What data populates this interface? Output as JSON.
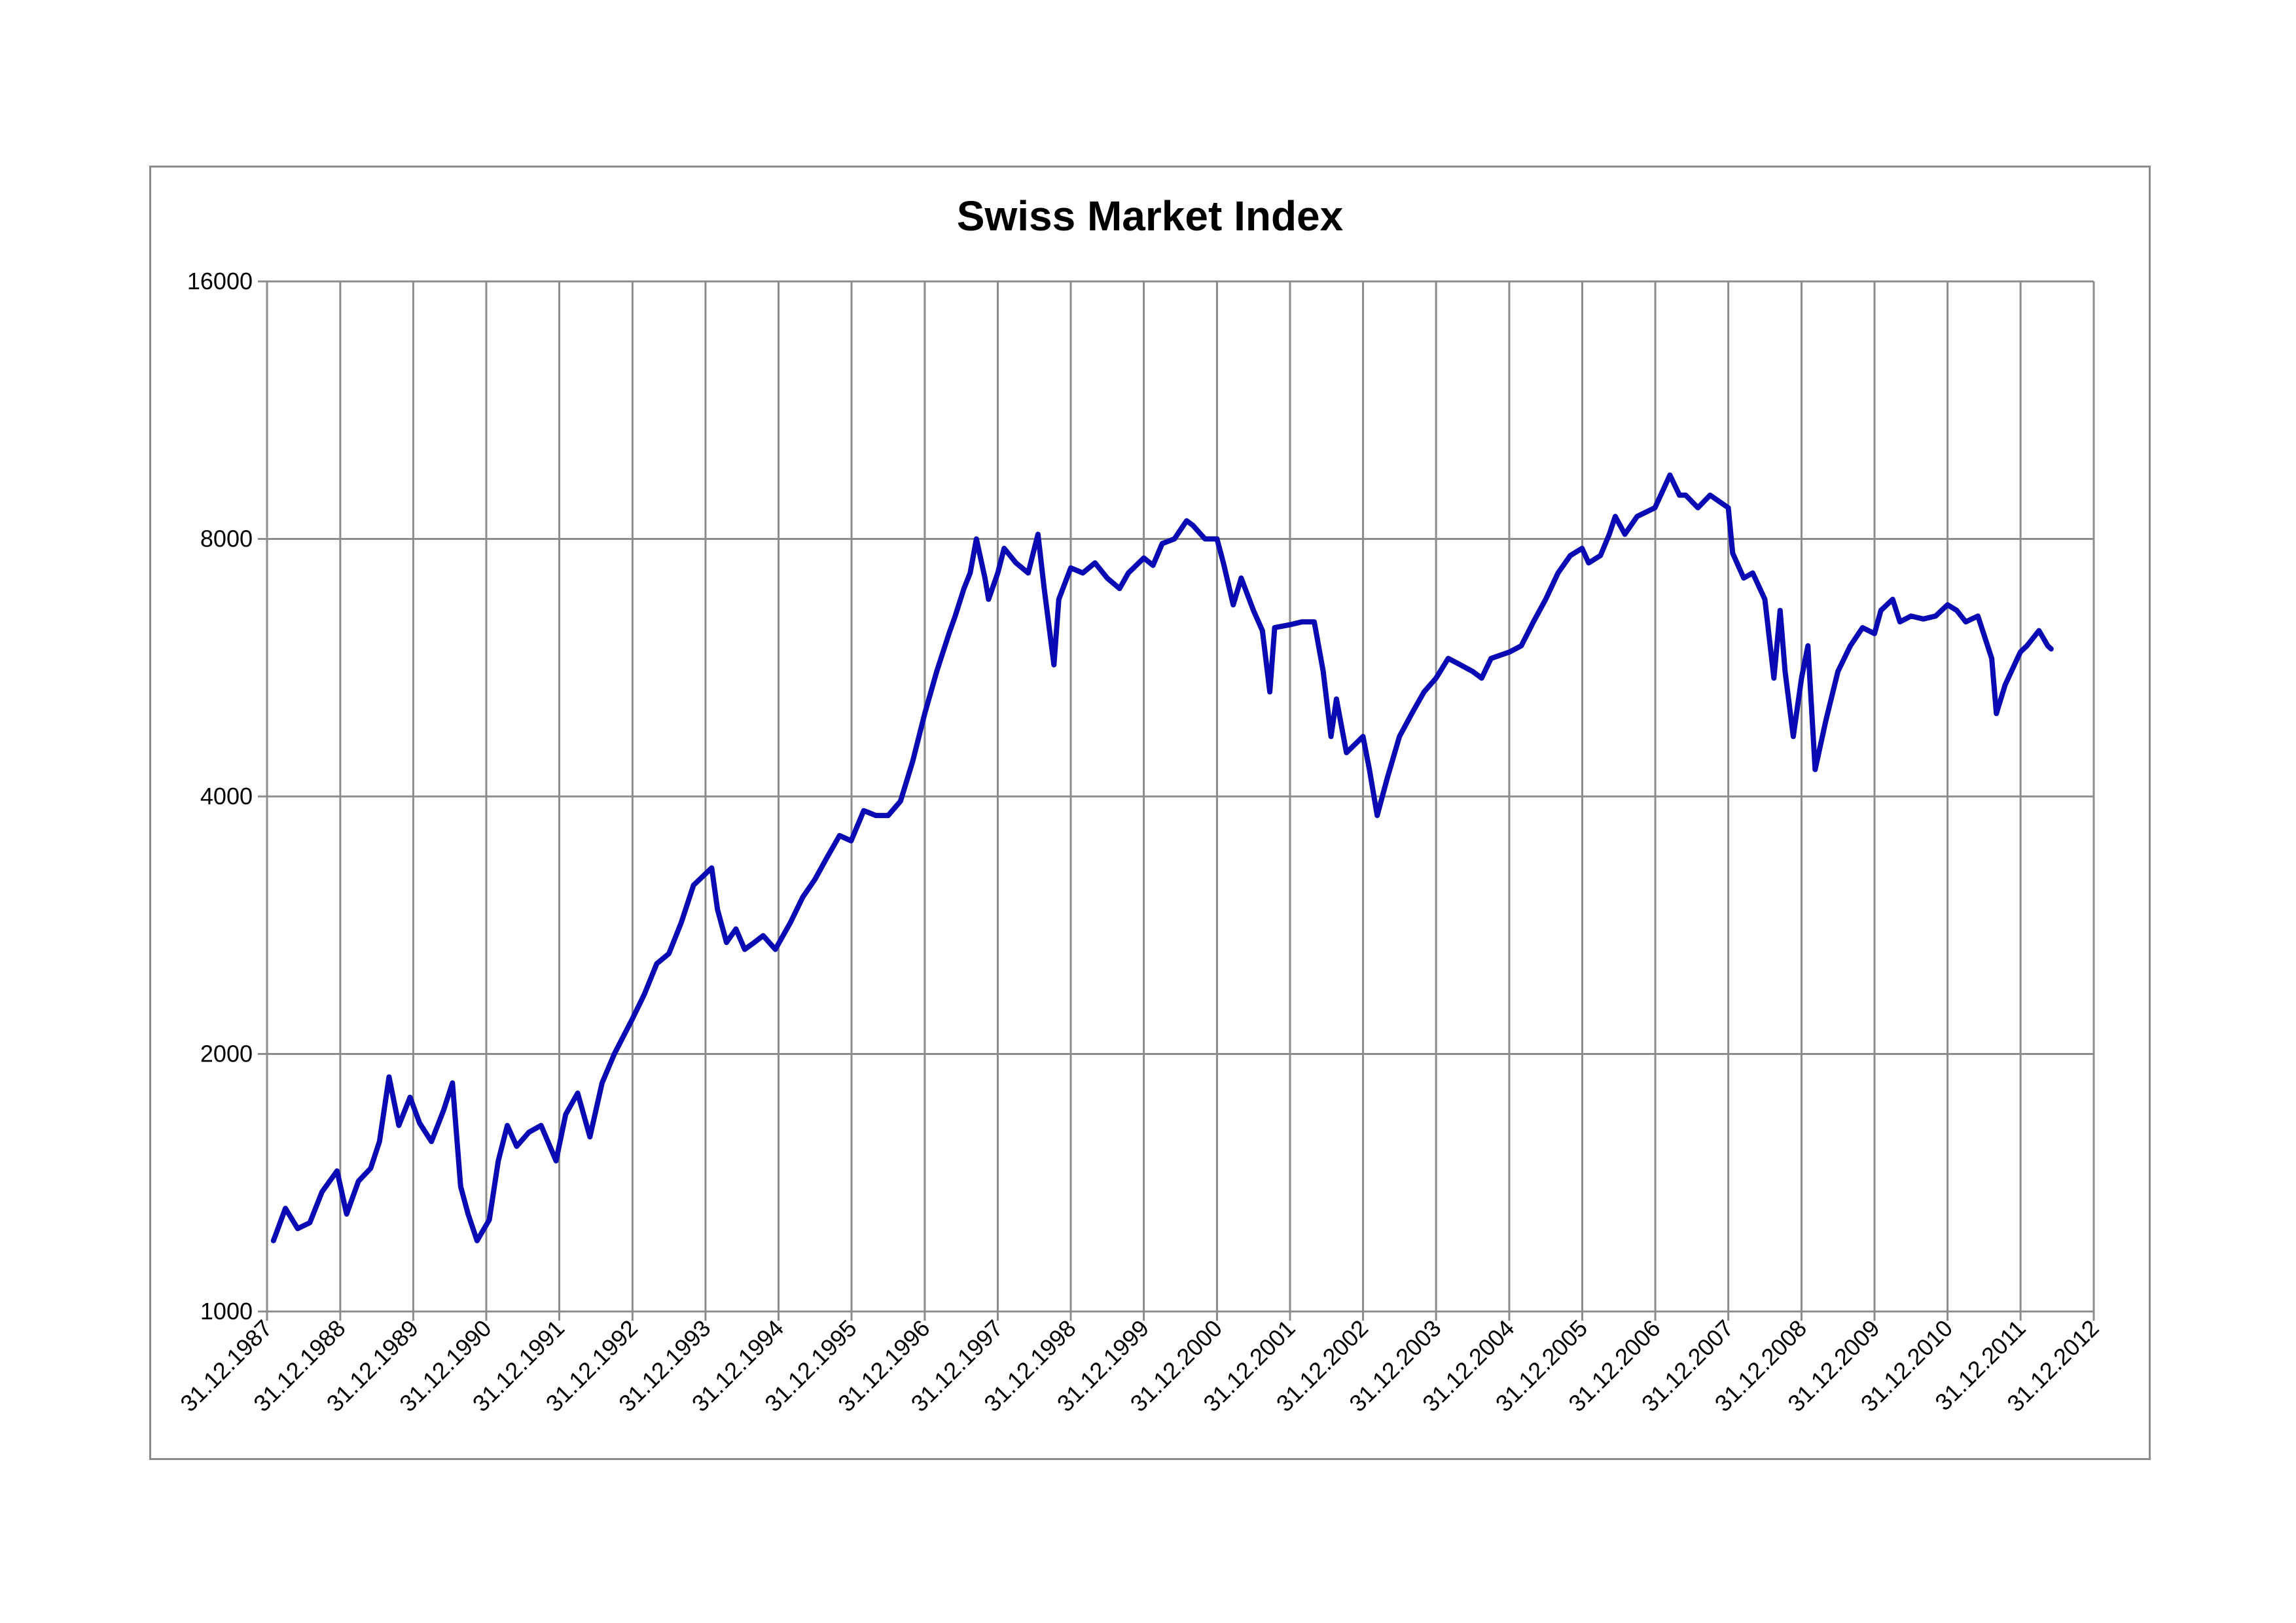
{
  "chart_data": {
    "type": "line",
    "title": "Swiss Market Index",
    "xlabel": "",
    "ylabel": "",
    "y_scale": "log2",
    "ylim": [
      1000,
      16000
    ],
    "y_ticks": [
      "1000",
      "2000",
      "4000",
      "8000",
      "16000"
    ],
    "x_ticks": [
      "31.12.1987",
      "31.12.1988",
      "31.12.1989",
      "31.12.1990",
      "31.12.1991",
      "31.12.1992",
      "31.12.1993",
      "31.12.1994",
      "31.12.1995",
      "31.12.1996",
      "31.12.1997",
      "31.12.1998",
      "31.12.1999",
      "31.12.2000",
      "31.12.2001",
      "31.12.2002",
      "31.12.2003",
      "31.12.2004",
      "31.12.2005",
      "31.12.2006",
      "31.12.2007",
      "31.12.2008",
      "31.12.2009",
      "31.12.2010",
      "31.12.2011",
      "31.12.2012"
    ],
    "xlim": [
      "1987-12-31",
      "2012-12-31"
    ],
    "grid": true,
    "line_color": "#0a0ab4",
    "series": [
      {
        "x": [
          "1988-02-01",
          "1988-04-01",
          "1988-06-01",
          "1988-08-01",
          "1988-10-01",
          "1988-12-15",
          "1989-02-01",
          "1989-04-01",
          "1989-06-01",
          "1989-07-15",
          "1989-09-01",
          "1989-10-20",
          "1989-12-15",
          "1990-02-01",
          "1990-04-01",
          "1990-06-01",
          "1990-07-15",
          "1990-08-25",
          "1990-10-01",
          "1990-11-15",
          "1991-01-15",
          "1991-03-01",
          "1991-04-15",
          "1991-06-01",
          "1991-08-01",
          "1991-10-01",
          "1991-12-15",
          "1992-02-01",
          "1992-04-01",
          "1992-06-01",
          "1992-08-01",
          "1992-10-01",
          "1992-12-31",
          "1993-03-01",
          "1993-05-01",
          "1993-07-01",
          "1993-09-01",
          "1993-11-01",
          "1994-01-31",
          "1994-03-01",
          "1994-04-15",
          "1994-06-01",
          "1994-07-15",
          "1994-09-01",
          "1994-10-15",
          "1994-12-15",
          "1995-03-01",
          "1995-05-01",
          "1995-07-01",
          "1995-09-01",
          "1995-11-01",
          "1995-12-29",
          "1996-03-01",
          "1996-05-01",
          "1996-07-01",
          "1996-09-01",
          "1996-11-01",
          "1996-12-31",
          "1997-03-01",
          "1997-05-01",
          "1997-06-01",
          "1997-07-15",
          "1997-08-15",
          "1997-09-15",
          "1997-10-28",
          "1997-11-15",
          "1997-12-31",
          "1998-02-01",
          "1998-04-01",
          "1998-06-01",
          "1998-07-20",
          "1998-08-20",
          "1998-10-08",
          "1998-11-01",
          "1998-12-31",
          "1999-03-01",
          "1999-05-01",
          "1999-07-01",
          "1999-09-01",
          "1999-10-15",
          "1999-12-31",
          "2000-02-15",
          "2000-04-01",
          "2000-06-01",
          "2000-08-01",
          "2000-09-01",
          "2000-11-01",
          "2000-12-31",
          "2001-02-01",
          "2001-03-22",
          "2001-05-01",
          "2001-07-01",
          "2001-08-15",
          "2001-09-21",
          "2001-10-15",
          "2001-12-31",
          "2002-03-01",
          "2002-05-01",
          "2002-06-15",
          "2002-07-24",
          "2002-08-20",
          "2002-10-09",
          "2002-12-31",
          "2003-02-01",
          "2003-03-12",
          "2003-05-01",
          "2003-07-01",
          "2003-09-01",
          "2003-11-01",
          "2003-12-31",
          "2004-03-01",
          "2004-05-01",
          "2004-07-01",
          "2004-08-15",
          "2004-10-01",
          "2004-12-31",
          "2005-03-01",
          "2005-05-01",
          "2005-07-01",
          "2005-09-01",
          "2005-11-01",
          "2005-12-30",
          "2006-02-01",
          "2006-04-01",
          "2006-05-15",
          "2006-06-14",
          "2006-08-01",
          "2006-10-01",
          "2006-12-29",
          "2007-02-15",
          "2007-03-14",
          "2007-05-01",
          "2007-06-01",
          "2007-08-01",
          "2007-10-01",
          "2007-12-31",
          "2008-01-22",
          "2008-03-17",
          "2008-05-01",
          "2008-07-01",
          "2008-08-15",
          "2008-09-15",
          "2008-10-10",
          "2008-11-20",
          "2008-12-31",
          "2009-02-01",
          "2009-03-09",
          "2009-05-01",
          "2009-07-01",
          "2009-09-01",
          "2009-11-01",
          "2009-12-31",
          "2010-02-01",
          "2010-04-01",
          "2010-05-07",
          "2010-07-01",
          "2010-09-01",
          "2010-11-01",
          "2010-12-31",
          "2011-02-15",
          "2011-04-01",
          "2011-06-01",
          "2011-08-09",
          "2011-09-01",
          "2011-10-15",
          "2011-12-30",
          "2012-02-01",
          "2012-04-01",
          "2012-05-15",
          "2012-06-01"
        ],
        "values": [
          1210,
          1320,
          1250,
          1270,
          1380,
          1460,
          1300,
          1420,
          1470,
          1580,
          1880,
          1650,
          1780,
          1660,
          1580,
          1720,
          1850,
          1400,
          1300,
          1210,
          1280,
          1500,
          1650,
          1560,
          1620,
          1650,
          1500,
          1700,
          1800,
          1600,
          1850,
          2000,
          2200,
          2350,
          2550,
          2620,
          2850,
          3150,
          3300,
          2950,
          2700,
          2800,
          2650,
          2700,
          2750,
          2650,
          2850,
          3050,
          3200,
          3400,
          3600,
          3550,
          3850,
          3800,
          3800,
          3950,
          4400,
          5000,
          5600,
          6200,
          6500,
          7000,
          7300,
          8000,
          7200,
          6800,
          7300,
          7800,
          7500,
          7300,
          8100,
          7000,
          5700,
          6800,
          7400,
          7300,
          7500,
          7200,
          7000,
          7300,
          7600,
          7450,
          7900,
          8000,
          8400,
          8300,
          8000,
          8000,
          7500,
          6700,
          7200,
          6600,
          6250,
          5300,
          6300,
          6350,
          6400,
          6400,
          5600,
          4700,
          5200,
          4500,
          4700,
          4300,
          3800,
          4200,
          4700,
          5000,
          5300,
          5500,
          5800,
          5700,
          5600,
          5500,
          5800,
          5900,
          6000,
          6400,
          6800,
          7300,
          7650,
          7800,
          7500,
          7650,
          8100,
          8500,
          8100,
          8500,
          8700,
          9200,
          9500,
          9000,
          9000,
          8700,
          9000,
          8700,
          7700,
          7200,
          7300,
          6800,
          5500,
          6600,
          5600,
          4700,
          5500,
          6000,
          4300,
          4900,
          5600,
          6000,
          6300,
          6200,
          6600,
          6800,
          6400,
          6500,
          6450,
          6500,
          6700,
          6600,
          6400,
          6500,
          5800,
          5000,
          5400,
          5900,
          6000,
          6250,
          6000,
          5950
        ]
      }
    ]
  }
}
